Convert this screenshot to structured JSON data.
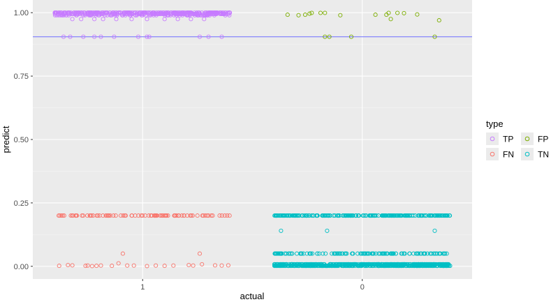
{
  "chart_data": {
    "type": "scatter",
    "xlabel": "actual",
    "ylabel": "predict",
    "x_categories": [
      "1",
      "0"
    ],
    "xlim": [
      0.5,
      2.5
    ],
    "ylim": [
      -0.05,
      1.05
    ],
    "y_ticks": [
      0.0,
      0.25,
      0.5,
      0.75,
      1.0
    ],
    "y_tick_labels": [
      "0.00",
      "0.25",
      "0.50",
      "0.75",
      "1.00"
    ],
    "grid": true,
    "hline": {
      "y": 0.905,
      "color": "#6d6dff"
    },
    "jitter_width": 0.4,
    "legend": {
      "title": "type",
      "placement": "right",
      "entries": [
        {
          "key": "TP",
          "label": "TP",
          "color": "#c77cff"
        },
        {
          "key": "FP",
          "label": "FP",
          "color": "#7cae00"
        },
        {
          "key": "FN",
          "label": "FN",
          "color": "#f8766d"
        },
        {
          "key": "TN",
          "label": "TN",
          "color": "#00bfc4"
        }
      ]
    },
    "series": [
      {
        "key": "TP",
        "actual": "1",
        "dense": [
          {
            "y": 1.0,
            "count": 260
          },
          {
            "y": 0.995,
            "count": 150
          },
          {
            "y": 0.99,
            "count": 80
          }
        ],
        "points": [
          [
            -0.32,
            0.975
          ],
          [
            -0.28,
            0.975
          ],
          [
            -0.22,
            0.975
          ],
          [
            -0.18,
            0.975
          ],
          [
            -0.12,
            0.975
          ],
          [
            -0.05,
            0.975
          ],
          [
            0.02,
            0.975
          ],
          [
            0.1,
            0.975
          ],
          [
            0.16,
            0.975
          ],
          [
            0.22,
            0.975
          ],
          [
            0.28,
            0.975
          ],
          [
            -0.36,
            0.905
          ],
          [
            -0.33,
            0.905
          ],
          [
            -0.27,
            0.905
          ],
          [
            -0.22,
            0.905
          ],
          [
            -0.19,
            0.905
          ],
          [
            -0.13,
            0.905
          ],
          [
            -0.02,
            0.905
          ],
          [
            0.02,
            0.905
          ],
          [
            0.03,
            0.905
          ],
          [
            0.26,
            0.905
          ],
          [
            0.3,
            0.905
          ],
          [
            0.36,
            0.905
          ]
        ]
      },
      {
        "key": "FP",
        "actual": "0",
        "points": [
          [
            -0.34,
            0.992
          ],
          [
            -0.29,
            0.99
          ],
          [
            -0.26,
            0.992
          ],
          [
            -0.24,
            0.996
          ],
          [
            -0.23,
            0.999
          ],
          [
            -0.19,
            0.999
          ],
          [
            -0.17,
            0.999
          ],
          [
            -0.1,
            0.99
          ],
          [
            0.06,
            0.992
          ],
          [
            0.11,
            0.992
          ],
          [
            0.12,
            0.999
          ],
          [
            0.13,
            0.975
          ],
          [
            0.16,
            0.999
          ],
          [
            0.19,
            0.998
          ],
          [
            0.25,
            0.993
          ],
          [
            0.35,
            0.97
          ],
          [
            -0.17,
            0.905
          ],
          [
            -0.15,
            0.905
          ],
          [
            -0.05,
            0.905
          ],
          [
            0.33,
            0.905
          ]
        ]
      },
      {
        "key": "FN",
        "actual": "1",
        "dense": [
          {
            "y": 0.2,
            "count": 90
          }
        ],
        "points": [
          [
            -0.38,
            0.002
          ],
          [
            -0.34,
            0.005
          ],
          [
            -0.32,
            0.004
          ],
          [
            -0.26,
            0.002
          ],
          [
            -0.25,
            0.003
          ],
          [
            -0.23,
            0.001
          ],
          [
            -0.21,
            0.002
          ],
          [
            -0.19,
            0.003
          ],
          [
            -0.14,
            0.002
          ],
          [
            -0.11,
            0.012
          ],
          [
            -0.09,
            0.05
          ],
          [
            -0.07,
            0.003
          ],
          [
            -0.04,
            0.003
          ],
          [
            0.02,
            0.001
          ],
          [
            0.06,
            0.003
          ],
          [
            0.1,
            0.002
          ],
          [
            0.14,
            0.003
          ],
          [
            0.21,
            0.005
          ],
          [
            0.23,
            0.003
          ],
          [
            0.26,
            0.05
          ],
          [
            0.27,
            0.008
          ],
          [
            0.33,
            0.004
          ],
          [
            0.36,
            0.003
          ],
          [
            0.39,
            0.004
          ]
        ]
      },
      {
        "key": "TN",
        "actual": "0",
        "dense": [
          {
            "y": 0.2,
            "count": 230
          },
          {
            "y": 0.05,
            "count": 130
          },
          {
            "y": 0.008,
            "count": 320
          },
          {
            "y": 0.002,
            "count": 320
          }
        ],
        "points": [
          [
            -0.37,
            0.14
          ],
          [
            -0.16,
            0.14
          ],
          [
            0.33,
            0.14
          ]
        ]
      }
    ]
  }
}
